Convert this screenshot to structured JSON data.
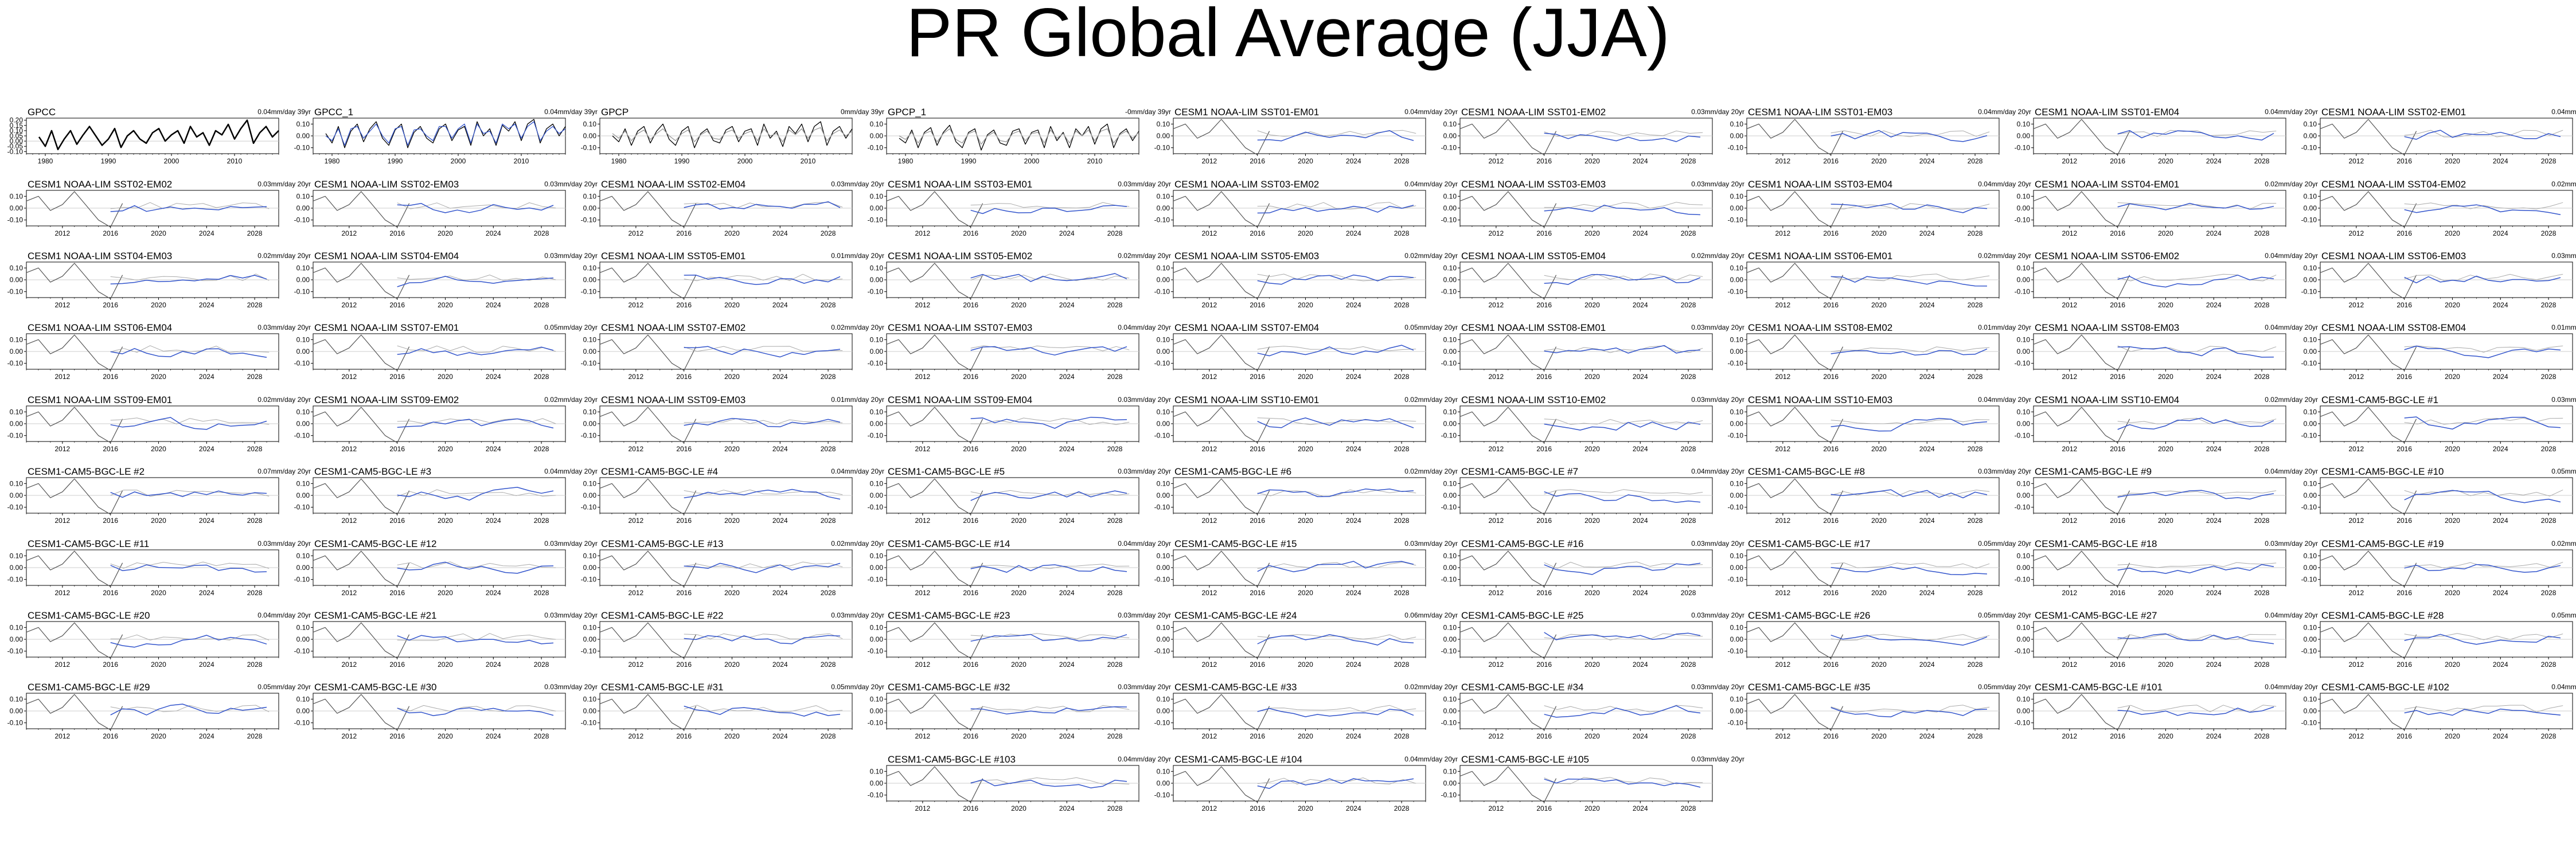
{
  "page_title": "PR Global Average (JJA)",
  "chart_data": [
    {
      "type": "line",
      "title": "GPCC",
      "trend": "0.04mm/day 39yr",
      "x_ticks": [
        "1980",
        "1990",
        "2000",
        "2010"
      ],
      "y_ticks": [
        "0.20",
        "0.15",
        "0.10",
        "0.05",
        "0.00",
        "-0.05",
        "-0.10"
      ],
      "ylim": [
        -0.12,
        0.22
      ],
      "series": [
        {
          "color": "#000000",
          "values": [
            0.04,
            -0.05,
            0.1,
            -0.08,
            0.02,
            0.1,
            -0.03,
            0.06,
            0.14,
            0.05,
            -0.04,
            0.02,
            0.12,
            -0.06,
            0.05,
            0.1,
            0.02,
            -0.02,
            0.08,
            0.12,
            0.0,
            0.06,
            0.1,
            -0.02,
            0.14,
            0.04,
            0.08,
            -0.04,
            0.1,
            0.06,
            0.16,
            0.02,
            0.12,
            0.2,
            -0.02,
            0.08,
            0.14,
            0.04,
            0.1
          ]
        }
      ]
    },
    {
      "type": "line",
      "title": "GPCC_1",
      "trend": "0.04mm/day 39yr",
      "x_ticks": [
        "1980",
        "1990",
        "2000",
        "2010"
      ],
      "y_ticks": [
        "0.10",
        "0.00",
        "-0.10"
      ],
      "ylim": [
        -0.15,
        0.15
      ],
      "series": [
        {
          "color": "#000000",
          "values": [
            0.02,
            -0.06,
            0.08,
            -0.1,
            0.04,
            0.1,
            -0.05,
            0.06,
            0.12,
            -0.02,
            -0.08,
            0.05,
            0.1,
            -0.1,
            0.03,
            0.08,
            -0.02,
            -0.06,
            0.06,
            0.1,
            -0.04,
            0.05,
            0.08,
            -0.08,
            0.12,
            0.0,
            0.06,
            -0.08,
            0.09,
            0.04,
            0.12,
            -0.04,
            0.1,
            0.14,
            -0.06,
            0.06,
            0.1,
            0.0,
            0.08
          ]
        },
        {
          "color": "#3355cc",
          "values": [
            0.0,
            -0.04,
            0.06,
            -0.08,
            0.06,
            0.08,
            -0.02,
            0.04,
            0.1,
            0.0,
            -0.06,
            0.06,
            0.08,
            -0.08,
            0.05,
            0.06,
            0.0,
            -0.04,
            0.08,
            0.08,
            -0.02,
            0.06,
            0.1,
            -0.06,
            0.1,
            0.02,
            0.04,
            -0.06,
            0.1,
            0.06,
            0.1,
            -0.02,
            0.08,
            0.12,
            -0.04,
            0.04,
            0.08,
            0.02,
            0.06
          ]
        }
      ]
    },
    {
      "type": "line",
      "title": "GPCP",
      "trend": "0mm/day 39yr",
      "x_ticks": [
        "1980",
        "1990",
        "2000",
        "2010"
      ],
      "y_ticks": [
        "0.10",
        "0.00",
        "-0.10"
      ],
      "ylim": [
        -0.15,
        0.15
      ],
      "series": [
        {
          "color": "#000000",
          "values": [
            0.0,
            -0.05,
            0.06,
            -0.08,
            0.04,
            0.08,
            -0.06,
            0.04,
            0.1,
            -0.03,
            -0.08,
            0.04,
            0.08,
            -0.1,
            0.02,
            0.06,
            -0.04,
            -0.06,
            0.05,
            0.08,
            -0.05,
            0.04,
            0.06,
            -0.08,
            0.1,
            -0.02,
            0.04,
            -0.09,
            0.08,
            0.02,
            0.1,
            -0.05,
            0.08,
            0.12,
            -0.08,
            0.04,
            0.08,
            -0.02,
            0.06
          ]
        },
        {
          "color": "#999999",
          "values": [
            0.02,
            -0.02,
            0.04,
            -0.04,
            0.02,
            0.05,
            -0.03,
            0.02,
            0.06,
            0.0,
            -0.04,
            0.02,
            0.05,
            -0.05,
            0.01,
            0.04,
            -0.02,
            -0.03,
            0.03,
            0.05,
            -0.02,
            0.02,
            0.04,
            -0.04,
            0.06,
            0.0,
            0.02,
            -0.05,
            0.05,
            0.01,
            0.06,
            -0.02,
            0.05,
            0.07,
            -0.04,
            0.02,
            0.05,
            0.0,
            0.04
          ]
        }
      ]
    },
    {
      "type": "line",
      "title": "GPCP_1",
      "trend": "-0mm/day 39yr",
      "x_ticks": [
        "1980",
        "1990",
        "2000",
        "2010"
      ],
      "y_ticks": [
        "0.10",
        "0.00",
        "-0.10"
      ],
      "ylim": [
        -0.15,
        0.15
      ],
      "series": [
        {
          "color": "#000000",
          "values": [
            -0.02,
            -0.06,
            0.05,
            -0.1,
            0.03,
            0.07,
            -0.08,
            0.03,
            0.09,
            -0.05,
            -0.1,
            0.03,
            0.06,
            -0.12,
            0.01,
            0.05,
            -0.06,
            -0.08,
            0.04,
            0.06,
            -0.07,
            0.03,
            0.05,
            -0.1,
            0.08,
            -0.04,
            0.03,
            -0.1,
            0.06,
            0.0,
            0.08,
            -0.07,
            0.06,
            0.1,
            -0.1,
            0.02,
            0.06,
            -0.04,
            0.04
          ]
        },
        {
          "color": "#999999",
          "values": [
            0.0,
            -0.03,
            0.03,
            -0.06,
            0.02,
            0.04,
            -0.05,
            0.02,
            0.06,
            -0.03,
            -0.06,
            0.02,
            0.04,
            -0.07,
            0.0,
            0.03,
            -0.04,
            -0.05,
            0.02,
            0.04,
            -0.04,
            0.02,
            0.03,
            -0.06,
            0.05,
            -0.02,
            0.02,
            -0.06,
            0.04,
            0.0,
            0.05,
            -0.04,
            0.04,
            0.06,
            -0.06,
            0.01,
            0.04,
            -0.02,
            0.03
          ]
        }
      ]
    },
    {
      "type": "line",
      "title": "CESM1 NOAA-LIM SST01-EM01",
      "trend": "0.04mm/day 20yr"
    },
    {
      "type": "line",
      "title": "CESM1 NOAA-LIM SST01-EM02",
      "trend": "0.03mm/day 20yr"
    },
    {
      "type": "line",
      "title": "CESM1 NOAA-LIM SST01-EM03",
      "trend": "0.04mm/day 20yr"
    },
    {
      "type": "line",
      "title": "CESM1 NOAA-LIM SST01-EM04",
      "trend": "0.04mm/day 20yr"
    },
    {
      "type": "line",
      "title": "CESM1 NOAA-LIM SST02-EM01",
      "trend": "0.04mm/day 20yr"
    },
    {
      "type": "line",
      "title": "CESM1 NOAA-LIM SST02-EM02",
      "trend": "0.03mm/day 20yr"
    },
    {
      "type": "line",
      "title": "CESM1 NOAA-LIM SST02-EM03",
      "trend": "0.03mm/day 20yr"
    },
    {
      "type": "line",
      "title": "CESM1 NOAA-LIM SST02-EM04",
      "trend": "0.03mm/day 20yr"
    },
    {
      "type": "line",
      "title": "CESM1 NOAA-LIM SST03-EM01",
      "trend": "0.03mm/day 20yr"
    },
    {
      "type": "line",
      "title": "CESM1 NOAA-LIM SST03-EM02",
      "trend": "0.04mm/day 20yr"
    },
    {
      "type": "line",
      "title": "CESM1 NOAA-LIM SST03-EM03",
      "trend": "0.03mm/day 20yr"
    },
    {
      "type": "line",
      "title": "CESM1 NOAA-LIM SST03-EM04",
      "trend": "0.04mm/day 20yr"
    },
    {
      "type": "line",
      "title": "CESM1 NOAA-LIM SST04-EM01",
      "trend": "0.02mm/day 20yr"
    },
    {
      "type": "line",
      "title": "CESM1 NOAA-LIM SST04-EM02",
      "trend": "0.02mm/day 20yr"
    },
    {
      "type": "line",
      "title": "CESM1 NOAA-LIM SST04-EM03",
      "trend": "0.02mm/day 20yr"
    },
    {
      "type": "line",
      "title": "CESM1 NOAA-LIM SST04-EM04",
      "trend": "0.03mm/day 20yr"
    },
    {
      "type": "line",
      "title": "CESM1 NOAA-LIM SST05-EM01",
      "trend": "0.01mm/day 20yr"
    },
    {
      "type": "line",
      "title": "CESM1 NOAA-LIM SST05-EM02",
      "trend": "0.02mm/day 20yr"
    },
    {
      "type": "line",
      "title": "CESM1 NOAA-LIM SST05-EM03",
      "trend": "0.02mm/day 20yr"
    },
    {
      "type": "line",
      "title": "CESM1 NOAA-LIM SST05-EM04",
      "trend": "0.02mm/day 20yr"
    },
    {
      "type": "line",
      "title": "CESM1 NOAA-LIM SST06-EM01",
      "trend": "0.02mm/day 20yr"
    },
    {
      "type": "line",
      "title": "CESM1 NOAA-LIM SST06-EM02",
      "trend": "0.04mm/day 20yr"
    },
    {
      "type": "line",
      "title": "CESM1 NOAA-LIM SST06-EM03",
      "trend": "0.03mm/day 20yr"
    },
    {
      "type": "line",
      "title": "CESM1 NOAA-LIM SST06-EM04",
      "trend": "0.03mm/day 20yr"
    },
    {
      "type": "line",
      "title": "CESM1 NOAA-LIM SST07-EM01",
      "trend": "0.05mm/day 20yr"
    },
    {
      "type": "line",
      "title": "CESM1 NOAA-LIM SST07-EM02",
      "trend": "0.02mm/day 20yr"
    },
    {
      "type": "line",
      "title": "CESM1 NOAA-LIM SST07-EM03",
      "trend": "0.04mm/day 20yr"
    },
    {
      "type": "line",
      "title": "CESM1 NOAA-LIM SST07-EM04",
      "trend": "0.05mm/day 20yr"
    },
    {
      "type": "line",
      "title": "CESM1 NOAA-LIM SST08-EM01",
      "trend": "0.03mm/day 20yr"
    },
    {
      "type": "line",
      "title": "CESM1 NOAA-LIM SST08-EM02",
      "trend": "0.01mm/day 20yr"
    },
    {
      "type": "line",
      "title": "CESM1 NOAA-LIM SST08-EM03",
      "trend": "0.04mm/day 20yr"
    },
    {
      "type": "line",
      "title": "CESM1 NOAA-LIM SST08-EM04",
      "trend": "0.01mm/day 20yr"
    },
    {
      "type": "line",
      "title": "CESM1 NOAA-LIM SST09-EM01",
      "trend": "0.02mm/day 20yr"
    },
    {
      "type": "line",
      "title": "CESM1 NOAA-LIM SST09-EM02",
      "trend": "0.02mm/day 20yr"
    },
    {
      "type": "line",
      "title": "CESM1 NOAA-LIM SST09-EM03",
      "trend": "0.01mm/day 20yr"
    },
    {
      "type": "line",
      "title": "CESM1 NOAA-LIM SST09-EM04",
      "trend": "0.03mm/day 20yr"
    },
    {
      "type": "line",
      "title": "CESM1 NOAA-LIM SST10-EM01",
      "trend": "0.02mm/day 20yr"
    },
    {
      "type": "line",
      "title": "CESM1 NOAA-LIM SST10-EM02",
      "trend": "0.03mm/day 20yr"
    },
    {
      "type": "line",
      "title": "CESM1 NOAA-LIM SST10-EM03",
      "trend": "0.04mm/day 20yr"
    },
    {
      "type": "line",
      "title": "CESM1 NOAA-LIM SST10-EM04",
      "trend": "0.02mm/day 20yr"
    },
    {
      "type": "line",
      "title": "CESM1-CAM5-BGC-LE #1",
      "trend": "0.03mm/day 20yr"
    },
    {
      "type": "line",
      "title": "CESM1-CAM5-BGC-LE #2",
      "trend": "0.07mm/day 20yr"
    },
    {
      "type": "line",
      "title": "CESM1-CAM5-BGC-LE #3",
      "trend": "0.04mm/day 20yr"
    },
    {
      "type": "line",
      "title": "CESM1-CAM5-BGC-LE #4",
      "trend": "0.04mm/day 20yr"
    },
    {
      "type": "line",
      "title": "CESM1-CAM5-BGC-LE #5",
      "trend": "0.03mm/day 20yr"
    },
    {
      "type": "line",
      "title": "CESM1-CAM5-BGC-LE #6",
      "trend": "0.02mm/day 20yr"
    },
    {
      "type": "line",
      "title": "CESM1-CAM5-BGC-LE #7",
      "trend": "0.04mm/day 20yr"
    },
    {
      "type": "line",
      "title": "CESM1-CAM5-BGC-LE #8",
      "trend": "0.03mm/day 20yr"
    },
    {
      "type": "line",
      "title": "CESM1-CAM5-BGC-LE #9",
      "trend": "0.04mm/day 20yr"
    },
    {
      "type": "line",
      "title": "CESM1-CAM5-BGC-LE #10",
      "trend": "0.05mm/day 20yr"
    },
    {
      "type": "line",
      "title": "CESM1-CAM5-BGC-LE #11",
      "trend": "0.03mm/day 20yr"
    },
    {
      "type": "line",
      "title": "CESM1-CAM5-BGC-LE #12",
      "trend": "0.03mm/day 20yr"
    },
    {
      "type": "line",
      "title": "CESM1-CAM5-BGC-LE #13",
      "trend": "0.02mm/day 20yr"
    },
    {
      "type": "line",
      "title": "CESM1-CAM5-BGC-LE #14",
      "trend": "0.04mm/day 20yr"
    },
    {
      "type": "line",
      "title": "CESM1-CAM5-BGC-LE #15",
      "trend": "0.03mm/day 20yr"
    },
    {
      "type": "line",
      "title": "CESM1-CAM5-BGC-LE #16",
      "trend": "0.03mm/day 20yr"
    },
    {
      "type": "line",
      "title": "CESM1-CAM5-BGC-LE #17",
      "trend": "0.05mm/day 20yr"
    },
    {
      "type": "line",
      "title": "CESM1-CAM5-BGC-LE #18",
      "trend": "0.03mm/day 20yr"
    },
    {
      "type": "line",
      "title": "CESM1-CAM5-BGC-LE #19",
      "trend": "0.02mm/day 20yr"
    },
    {
      "type": "line",
      "title": "CESM1-CAM5-BGC-LE #20",
      "trend": "0.04mm/day 20yr"
    },
    {
      "type": "line",
      "title": "CESM1-CAM5-BGC-LE #21",
      "trend": "0.03mm/day 20yr"
    },
    {
      "type": "line",
      "title": "CESM1-CAM5-BGC-LE #22",
      "trend": "0.03mm/day 20yr"
    },
    {
      "type": "line",
      "title": "CESM1-CAM5-BGC-LE #23",
      "trend": "0.03mm/day 20yr"
    },
    {
      "type": "line",
      "title": "CESM1-CAM5-BGC-LE #24",
      "trend": "0.06mm/day 20yr"
    },
    {
      "type": "line",
      "title": "CESM1-CAM5-BGC-LE #25",
      "trend": "0.03mm/day 20yr"
    },
    {
      "type": "line",
      "title": "CESM1-CAM5-BGC-LE #26",
      "trend": "0.05mm/day 20yr"
    },
    {
      "type": "line",
      "title": "CESM1-CAM5-BGC-LE #27",
      "trend": "0.04mm/day 20yr"
    },
    {
      "type": "line",
      "title": "CESM1-CAM5-BGC-LE #28",
      "trend": "0.05mm/day 20yr"
    },
    {
      "type": "line",
      "title": "CESM1-CAM5-BGC-LE #29",
      "trend": "0.05mm/day 20yr"
    },
    {
      "type": "line",
      "title": "CESM1-CAM5-BGC-LE #30",
      "trend": "0.03mm/day 20yr"
    },
    {
      "type": "line",
      "title": "CESM1-CAM5-BGC-LE #31",
      "trend": "0.05mm/day 20yr"
    },
    {
      "type": "line",
      "title": "CESM1-CAM5-BGC-LE #32",
      "trend": "0.03mm/day 20yr"
    },
    {
      "type": "line",
      "title": "CESM1-CAM5-BGC-LE #33",
      "trend": "0.02mm/day 20yr"
    },
    {
      "type": "line",
      "title": "CESM1-CAM5-BGC-LE #34",
      "trend": "0.03mm/day 20yr"
    },
    {
      "type": "line",
      "title": "CESM1-CAM5-BGC-LE #35",
      "trend": "0.05mm/day 20yr"
    },
    {
      "type": "line",
      "title": "CESM1-CAM5-BGC-LE #101",
      "trend": "0.04mm/day 20yr"
    },
    {
      "type": "line",
      "title": "CESM1-CAM5-BGC-LE #102",
      "trend": "0.04mm/day 20yr"
    },
    {
      "type": "line",
      "title": "CESM1-CAM5-BGC-LE #103",
      "trend": "0.04mm/day 20yr"
    },
    {
      "type": "line",
      "title": "CESM1-CAM5-BGC-LE #104",
      "trend": "0.04mm/day 20yr"
    },
    {
      "type": "line",
      "title": "CESM1-CAM5-BGC-LE #105",
      "trend": "0.03mm/day 20yr"
    }
  ],
  "model_panel_defaults": {
    "x_ticks": [
      "2012",
      "2016",
      "2020",
      "2024",
      "2028"
    ],
    "xlim": [
      2009,
      2030
    ],
    "y_ticks": [
      "0.10",
      "0.00",
      "-0.10"
    ],
    "ylim": [
      -0.15,
      0.15
    ],
    "observed_overlay": {
      "color": "#555555",
      "x_start": 2009,
      "values": [
        0.06,
        0.1,
        -0.02,
        0.03,
        0.14,
        0.02,
        -0.1,
        -0.16,
        0.04
      ]
    },
    "forecast_trace": {
      "color": "#3355cc",
      "x_start": 2016
    }
  },
  "obs_xlim": [
    1977,
    2017
  ]
}
